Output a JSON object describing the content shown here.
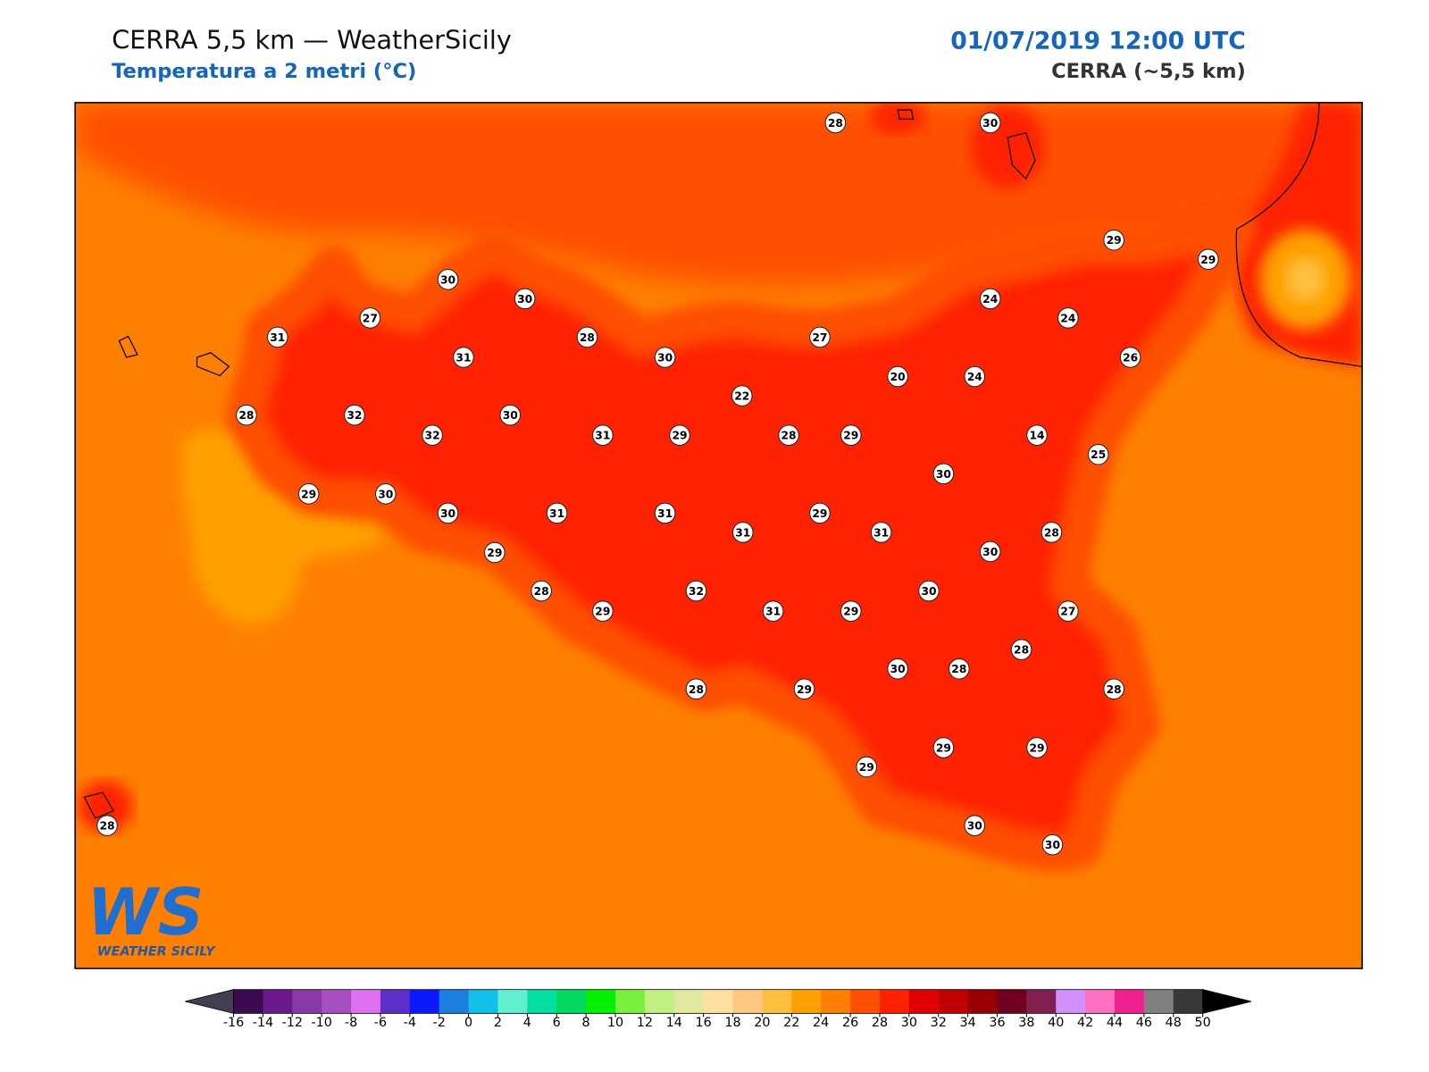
{
  "header": {
    "title": "CERRA 5,5 km — WeatherSicily",
    "subtitle": "Temperatura a 2 metri (°C)",
    "valid_time": "01/07/2019 12:00 UTC",
    "model": "CERRA (~5,5 km)"
  },
  "stations": [
    28,
    30,
    29,
    29,
    30,
    30,
    24,
    24,
    27,
    31,
    28,
    27,
    31,
    30,
    26,
    20,
    24,
    22,
    28,
    32,
    30,
    32,
    31,
    29,
    28,
    29,
    14,
    25,
    30,
    29,
    30,
    30,
    31,
    31,
    29,
    31,
    31,
    28,
    30,
    29,
    28,
    32,
    30,
    29,
    31,
    29,
    27,
    28,
    30,
    28,
    28,
    29,
    28,
    29,
    29,
    29,
    30,
    30,
    28
  ],
  "colorbar": {
    "ticks": [
      -16,
      -14,
      -12,
      -10,
      -8,
      -6,
      -4,
      -2,
      0,
      2,
      4,
      6,
      8,
      10,
      12,
      14,
      16,
      18,
      20,
      22,
      24,
      26,
      28,
      30,
      32,
      34,
      36,
      38,
      40,
      42,
      44,
      46,
      48,
      50
    ],
    "colors": [
      "#3b0a4f",
      "#6a1a8a",
      "#8a3aa8",
      "#a64fc0",
      "#df70ef",
      "#5b2fc8",
      "#0a1aff",
      "#1a7fdf",
      "#10c0e8",
      "#60f0d0",
      "#00e0a0",
      "#00d860",
      "#00f000",
      "#78f040",
      "#c0f080",
      "#e0e8a0",
      "#ffe0a0",
      "#ffc880",
      "#ffc040",
      "#ffa000",
      "#ff8000",
      "#ff5000",
      "#ff2000",
      "#e00000",
      "#c00000",
      "#980000",
      "#700020",
      "#802050",
      "#d090ff",
      "#ff70c0",
      "#f02090",
      "#808080",
      "#383838"
    ],
    "under_color": "#404050",
    "over_color": "#000000"
  },
  "logo": {
    "letters": "WS",
    "name": "WEATHER SICILY"
  }
}
